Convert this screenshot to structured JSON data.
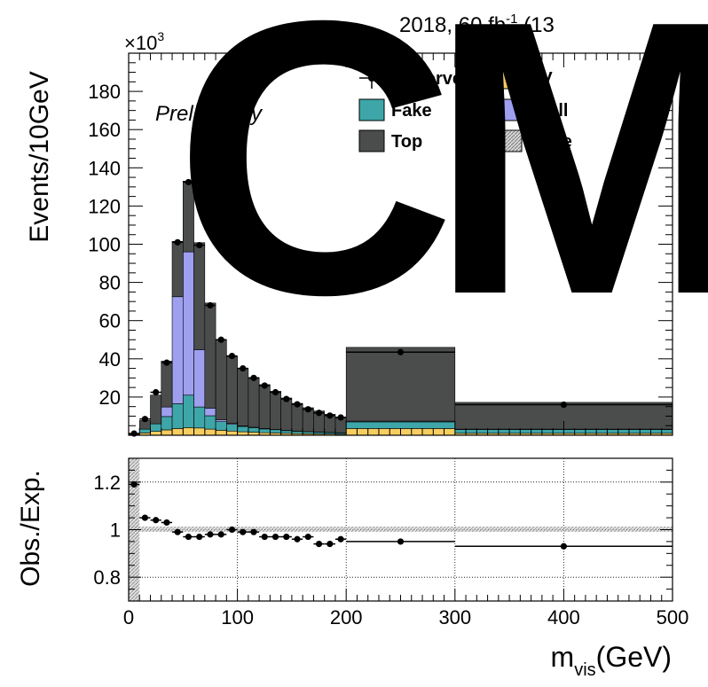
{
  "header": {
    "lumi_prefix": "2018, 60 fb",
    "lumi_exp": "-1",
    "lumi_suffix": " (13",
    "scale_label": "×10",
    "scale_exp": "3",
    "preliminary": "Preliminary",
    "watermark": "CMS"
  },
  "legend": [
    {
      "label": "Observed",
      "kind": "marker"
    },
    {
      "label": "VV",
      "kind": "box",
      "color": "#f7cd60"
    },
    {
      "label": "Fake",
      "kind": "box",
      "color": "#3ea6a8"
    },
    {
      "label": "Drell",
      "kind": "box",
      "color": "#9f9ff0"
    },
    {
      "label": "Top",
      "kind": "box",
      "color": "#4a4d4c"
    },
    {
      "label": "Unce",
      "kind": "hatch",
      "color": "#9a9a9a"
    }
  ],
  "chart_data": [
    {
      "type": "stacked-histogram",
      "ylabel": "Events/10GeV",
      "ylim": [
        0,
        200
      ],
      "y_unit_scale": 1000,
      "yticks": [
        20,
        40,
        60,
        80,
        100,
        120,
        140,
        160,
        180
      ],
      "xlim": [
        0,
        500
      ],
      "bin_edges": [
        0,
        10,
        20,
        30,
        40,
        50,
        60,
        70,
        80,
        90,
        100,
        110,
        120,
        130,
        140,
        150,
        160,
        170,
        180,
        190,
        200,
        300,
        500
      ],
      "series": [
        {
          "name": "VV",
          "color": "#f7cd60",
          "values": [
            0.2,
            1.2,
            2.0,
            2.8,
            3.5,
            4.0,
            3.8,
            3.2,
            2.6,
            2.2,
            1.8,
            1.6,
            1.3,
            1.2,
            1.0,
            0.9,
            0.8,
            0.7,
            0.6,
            0.5,
            3.5,
            1.0
          ]
        },
        {
          "name": "Fake",
          "color": "#3ea6a8",
          "values": [
            0.3,
            2.0,
            4.0,
            7.0,
            13.0,
            17.0,
            11.0,
            7.0,
            4.5,
            3.5,
            2.8,
            2.4,
            2.0,
            1.7,
            1.4,
            1.2,
            1.0,
            0.9,
            0.8,
            0.7,
            3.5,
            2.0
          ]
        },
        {
          "name": "Drell",
          "color": "#9f9ff0",
          "values": [
            0,
            0,
            0,
            5.0,
            56.0,
            75.0,
            30.0,
            4.0,
            1.0,
            0.5,
            0.3,
            0.2,
            0.2,
            0.1,
            0.1,
            0.1,
            0.1,
            0.1,
            0.1,
            0.1,
            0.4,
            0.2
          ]
        },
        {
          "name": "Top",
          "color": "#4a4d4c",
          "values": [
            0.3,
            4.5,
            15.0,
            24.0,
            29.0,
            37.0,
            56.0,
            55.0,
            42.0,
            35.0,
            30.0,
            26.0,
            23.0,
            20.0,
            17.0,
            14.5,
            12.5,
            11.0,
            9.5,
            8.3,
            38.6,
            14.0
          ]
        }
      ],
      "observed": {
        "x": [
          5,
          15,
          25,
          35,
          45,
          55,
          65,
          75,
          85,
          95,
          105,
          115,
          125,
          135,
          145,
          155,
          165,
          175,
          185,
          195,
          250,
          400
        ],
        "y": [
          0.9,
          8.5,
          22.5,
          38.0,
          101.0,
          132.5,
          99.5,
          68.0,
          50.0,
          41.5,
          35.0,
          30.0,
          26.0,
          22.5,
          19.0,
          16.2,
          13.6,
          11.7,
          10.3,
          9.3,
          43.5,
          16.0
        ]
      }
    },
    {
      "type": "ratio",
      "ylabel": "Obs./Exp.",
      "ylim": [
        0.7,
        1.3
      ],
      "yticks": [
        0.8,
        1,
        1.2
      ],
      "ytick_labels": [
        "0.8",
        "1",
        "1.2"
      ],
      "xlabel_main": "m",
      "xlabel_sub": "vis",
      "xlabel_unit": "(GeV)",
      "xticks": [
        0,
        100,
        200,
        300,
        400,
        500
      ],
      "xtick_labels": [
        "0",
        "100",
        "200",
        "300",
        "400",
        "500"
      ],
      "bin_edges": [
        0,
        10,
        20,
        30,
        40,
        50,
        60,
        70,
        80,
        90,
        100,
        110,
        120,
        130,
        140,
        150,
        160,
        170,
        180,
        190,
        200,
        300,
        500
      ],
      "values": [
        1.19,
        1.05,
        1.04,
        1.03,
        0.99,
        0.97,
        0.97,
        0.98,
        0.98,
        1.0,
        0.99,
        0.99,
        0.97,
        0.97,
        0.97,
        0.96,
        0.97,
        0.94,
        0.94,
        0.96,
        0.95,
        0.93
      ],
      "grid": true
    }
  ]
}
